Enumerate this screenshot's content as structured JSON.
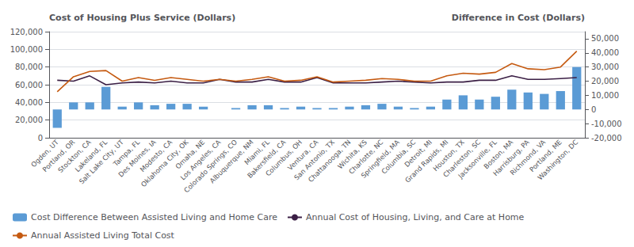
{
  "chart_data": {
    "type": "bar",
    "categories": [
      "Ogden, UT",
      "Portland, OR",
      "Stockton, CA",
      "Lakeland, FL",
      "Salt Lake City, UT",
      "Tampa, FL",
      "Des Moines, IA",
      "Modesto, CA",
      "Oklahoma City, OK",
      "Omaha, NE",
      "Los Angeles, CA",
      "Colorado Springs, CO",
      "Albuquerque, NM",
      "Miami, FL",
      "Bakersfield, CA",
      "Columbus, OH",
      "Ventura, CA",
      "San Antonio, TX",
      "Chattanooga, TN",
      "Wichita, KS",
      "Charlotte, NC",
      "Springfield, MA",
      "Columbia, SC",
      "Detroit, MI",
      "Grand Rapids, MI",
      "Houston, TX",
      "Charleston, SC",
      "Jacksonville, FL",
      "Boston, MA",
      "Harrisburg, PA",
      "Richmond, VA",
      "Portland, ME",
      "Washington, DC"
    ],
    "series": [
      {
        "name": "Cost Difference Between Assisted Living and Home Care",
        "type": "bar",
        "axis": "y2",
        "color": "#5B9BD5",
        "values": [
          -13000,
          5000,
          5000,
          16000,
          2000,
          5000,
          3000,
          4000,
          4000,
          2000,
          0,
          1000,
          3000,
          3000,
          1000,
          2000,
          1000,
          1000,
          2000,
          3000,
          4000,
          2000,
          1000,
          2000,
          7000,
          10000,
          7000,
          9000,
          14000,
          12000,
          11000,
          13000,
          30000
        ]
      },
      {
        "name": "Annual Cost of Housing, Living, and Care at Home",
        "type": "line",
        "color": "#3B1F45",
        "values": [
          65000,
          64000,
          70000,
          60000,
          62000,
          63000,
          62000,
          64000,
          62000,
          62000,
          66000,
          63000,
          63000,
          66000,
          63000,
          63000,
          68000,
          62000,
          62000,
          62000,
          63000,
          64000,
          63000,
          62000,
          63000,
          63000,
          65000,
          65000,
          70000,
          66000,
          66000,
          67000,
          68000
        ]
      },
      {
        "name": "Annual Assisted Living Total Cost",
        "type": "line",
        "color": "#C55A11",
        "values": [
          52000,
          69000,
          75000,
          76000,
          64000,
          68000,
          65000,
          68000,
          66000,
          64000,
          66000,
          64000,
          66000,
          69000,
          64000,
          65000,
          69000,
          63000,
          64000,
          65000,
          67000,
          66000,
          64000,
          64000,
          70000,
          73000,
          72000,
          74000,
          84000,
          78000,
          77000,
          80000,
          98000
        ]
      }
    ],
    "ylabel": "Cost of Housing Plus Service (Dollars)",
    "y2label": "Difference in Cost (Dollars)",
    "ylim": [
      0,
      120000
    ],
    "yticks": [
      0,
      {
        "value": 20000,
        "label": "20,000"
      },
      {
        "value": 40000,
        "label": "40,000"
      },
      {
        "value": 60000,
        "label": "60,000"
      },
      {
        "value": 80000,
        "label": "80,000"
      },
      {
        "value": 100000,
        "label": "100,000"
      },
      {
        "value": 120000,
        "label": "120,000"
      }
    ],
    "y2lim": [
      -20000,
      55000
    ],
    "y2ticks": [
      {
        "value": -20000,
        "label": "-20,000"
      },
      {
        "value": -10000,
        "label": "-10,000"
      },
      0,
      {
        "value": 10000,
        "label": "10,000"
      },
      {
        "value": 20000,
        "label": "20,000"
      },
      {
        "value": 30000,
        "label": "30,000"
      },
      {
        "value": 40000,
        "label": "40,000"
      },
      {
        "value": 50000,
        "label": "50,000"
      }
    ],
    "grid": true,
    "legend": "lower left"
  }
}
